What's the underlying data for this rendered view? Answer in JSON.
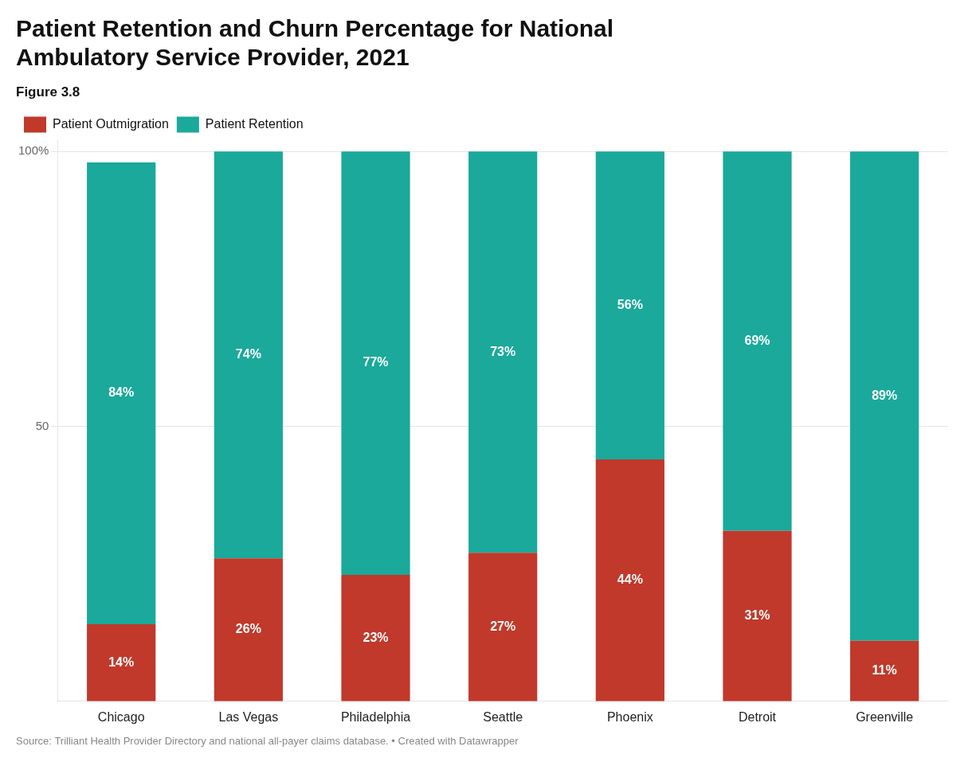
{
  "chart_data": {
    "type": "bar",
    "title": [
      "Patient Retention and Churn Percentage for National",
      "Ambulatory Service Provider, 2021"
    ],
    "subtitle": "Figure 3.8",
    "annotations": [
      "Source: Trilliant Health Provider Directory and national all-payer claims database. • Created with Datawrapper"
    ],
    "categories": [
      "Chicago",
      "Las Vegas",
      "Philadelphia",
      "Seattle",
      "Phoenix",
      "Detroit",
      "Greenville"
    ],
    "series": [
      {
        "name": "Patient Outmigration",
        "color": "#C0392B",
        "values": [
          14,
          26,
          23,
          27,
          44,
          31,
          11
        ],
        "value_labels": [
          "14%",
          "26%",
          "23%",
          "27%",
          "44%",
          "31%",
          "11%"
        ]
      },
      {
        "name": "Patient Retention",
        "color": "#1AA99A",
        "values": [
          84,
          74,
          77,
          73,
          56,
          69,
          89
        ],
        "value_labels": [
          "84%",
          "74%",
          "77%",
          "73%",
          "56%",
          "69%",
          "89%"
        ]
      }
    ],
    "stacked": true,
    "data_labels": true,
    "ylim": [
      0,
      102
    ],
    "yticks": [
      50,
      {
        "value": 100,
        "label": "100%"
      }
    ],
    "grid": true,
    "legend": "top"
  }
}
